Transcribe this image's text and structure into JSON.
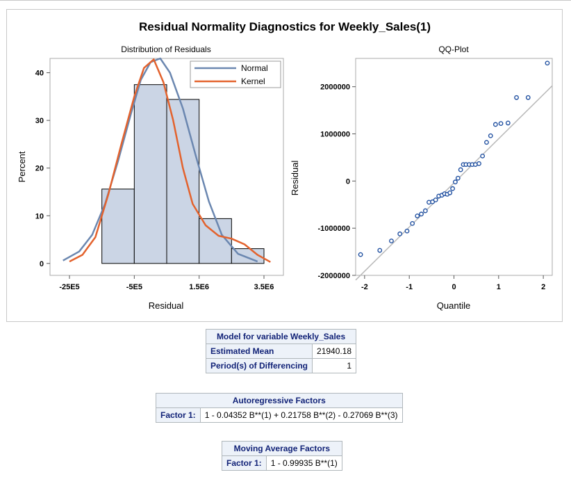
{
  "title": "Residual Normality Diagnostics for Weekly_Sales(1)",
  "colors": {
    "bar_fill": "#cbd5e5",
    "normal": "#6b87b0",
    "kernel": "#e3622d",
    "point": "#1f4fa0",
    "ref_line": "#b8b8b8"
  },
  "chart_data": [
    {
      "type": "bar",
      "title": "Distribution of Residuals",
      "xlabel": "Residual",
      "ylabel": "Percent",
      "x_tick_labels": [
        "-25E5",
        "-5E5",
        "1.5E6",
        "3.5E6"
      ],
      "x_tick_values": [
        -2500000,
        -500000,
        1500000,
        3500000
      ],
      "y_ticks": [
        0,
        10,
        20,
        30,
        40
      ],
      "xlim": [
        -3100000,
        4100000
      ],
      "ylim": [
        -2.5,
        43
      ],
      "bin_edges": [
        -1500000,
        -500000,
        500000,
        1500000,
        2500000,
        3500000
      ],
      "values": [
        15.6,
        37.5,
        34.4,
        9.4,
        3.1
      ],
      "legend": {
        "placement": "top-right",
        "entries": [
          "Normal",
          "Kernel"
        ]
      },
      "series": [
        {
          "name": "Normal",
          "x": [
            -2700000,
            -2200000,
            -1800000,
            -1400000,
            -1000000,
            -600000,
            -300000,
            0,
            300000,
            600000,
            1000000,
            1400000,
            1800000,
            2200000,
            2700000,
            3300000
          ],
          "y": [
            0.6,
            2.5,
            6.0,
            12.5,
            21.5,
            31.5,
            38.5,
            42.2,
            43.0,
            40.0,
            32.5,
            22.5,
            13.0,
            6.0,
            2.0,
            0.4
          ]
        },
        {
          "name": "Kernel",
          "x": [
            -2500000,
            -2100000,
            -1700000,
            -1300000,
            -900000,
            -500000,
            -200000,
            100000,
            400000,
            700000,
            1000000,
            1300000,
            1700000,
            2100000,
            2500000,
            2900000,
            3300000,
            3700000
          ],
          "y": [
            0.4,
            1.8,
            5.5,
            14.5,
            25.0,
            35.0,
            41.0,
            42.8,
            38.0,
            30.0,
            20.0,
            12.5,
            8.0,
            5.8,
            5.2,
            4.0,
            1.8,
            0.3
          ]
        }
      ]
    },
    {
      "type": "scatter",
      "title": "QQ-Plot",
      "xlabel": "Quantile",
      "ylabel": "Residual",
      "x_ticks": [
        -2,
        -1,
        0,
        1,
        2
      ],
      "y_tick_labels": [
        "-2000000",
        "-1000000",
        "0",
        "1000000",
        "2000000"
      ],
      "y_ticks": [
        -2000000,
        -1000000,
        0,
        1000000,
        2000000
      ],
      "xlim": [
        -2.2,
        2.2
      ],
      "ylim": [
        -2000000,
        2600000
      ],
      "reference_line": {
        "x": [
          -2.2,
          2.2
        ],
        "y": [
          -2100000,
          2020000
        ]
      },
      "points": {
        "x": [
          -2.09,
          -1.66,
          -1.4,
          -1.21,
          -1.05,
          -0.93,
          -0.82,
          -0.73,
          -0.64,
          -0.56,
          -0.48,
          -0.41,
          -0.34,
          -0.27,
          -0.21,
          -0.15,
          -0.09,
          -0.03,
          0.03,
          0.09,
          0.15,
          0.21,
          0.27,
          0.34,
          0.41,
          0.48,
          0.56,
          0.64,
          0.73,
          0.82,
          0.93,
          1.05,
          1.21,
          1.4,
          1.66,
          2.09
        ],
        "y": [
          -1560000,
          -1470000,
          -1270000,
          -1120000,
          -1060000,
          -900000,
          -740000,
          -700000,
          -630000,
          -450000,
          -440000,
          -400000,
          -320000,
          -300000,
          -270000,
          -280000,
          -250000,
          -160000,
          -20000,
          60000,
          240000,
          350000,
          350000,
          350000,
          350000,
          350000,
          370000,
          530000,
          820000,
          960000,
          1200000,
          1220000,
          1230000,
          1770000,
          1770000,
          2500000
        ]
      }
    }
  ],
  "table1": {
    "title": "Model for variable Weekly_Sales",
    "rows": [
      {
        "label": "Estimated Mean",
        "value": "21940.18"
      },
      {
        "label": "Period(s) of Differencing",
        "value": "1"
      }
    ]
  },
  "table2": {
    "title": "Autoregressive Factors",
    "row": {
      "label": "Factor 1:",
      "value": "1 - 0.04352 B**(1) + 0.21758 B**(2) - 0.27069 B**(3)"
    }
  },
  "table3": {
    "title": "Moving Average Factors",
    "row": {
      "label": "Factor 1:",
      "value": "1 - 0.99935 B**(1)"
    }
  }
}
